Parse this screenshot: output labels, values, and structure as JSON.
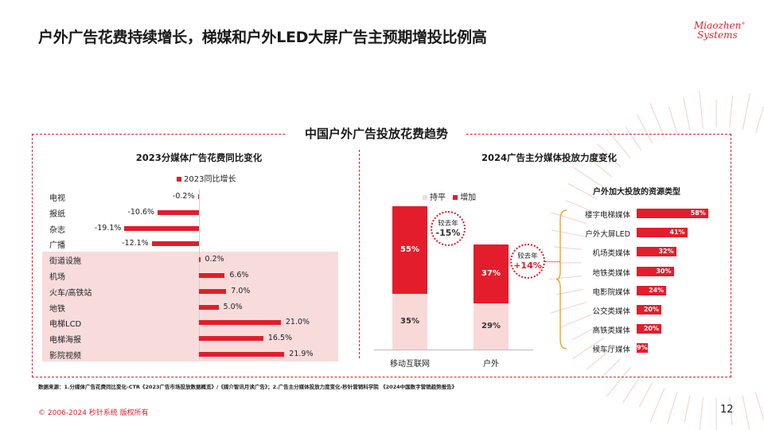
{
  "page": {
    "title": "户外广告花费持续增长，梯媒和户外LED大屏广告主预期增投比例高",
    "logo_line1": "Miaozhen",
    "logo_line2": "Systems",
    "logo_mark": "®",
    "panel_title": "中国户外广告投放花费趋势",
    "note": "数据来源：1.分媒体广告花费同比变化-CTR《2023广告市场投放数据概览》/《媒介智讯月读广告》；2.广告主分媒体投放力度变化-秒针营销科学院 《2024中国数字营销趋势报告》",
    "copyright": "© 2006-2024 秒针系统 版权所有",
    "page_number": "12"
  },
  "chart_data": [
    {
      "type": "bar",
      "orientation": "horizontal",
      "title": "2023分媒体广告花费同比变化",
      "legend": "2023同比增长",
      "categories": [
        "电视",
        "报纸",
        "杂志",
        "广播",
        "街道设施",
        "机场",
        "火车/高铁站",
        "地铁",
        "电梯LCD",
        "电梯海报",
        "影院视频"
      ],
      "values": [
        -0.2,
        -10.6,
        -19.1,
        -12.1,
        0.2,
        6.6,
        7.0,
        5.0,
        21.0,
        16.5,
        21.9
      ],
      "value_labels": [
        "-0.2%",
        "-10.6%",
        "-19.1%",
        "-12.1%",
        "0.2%",
        "6.6%",
        "7.0%",
        "5.0%",
        "21.0%",
        "16.5%",
        "21.9%"
      ],
      "highlighted_categories": [
        "街道设施",
        "机场",
        "火车/高铁站",
        "地铁",
        "电梯LCD",
        "电梯海报",
        "影院视频"
      ]
    },
    {
      "type": "bar",
      "stacked": true,
      "title": "2024广告主分媒体投放力度变化",
      "categories": [
        "移动互联网",
        "户外"
      ],
      "series": [
        {
          "name": "持平",
          "values": [
            35,
            29
          ],
          "labels": [
            "35%",
            "29%"
          ],
          "color": "#f9d8d8"
        },
        {
          "name": "增加",
          "values": [
            55,
            37
          ],
          "labels": [
            "55%",
            "37%"
          ],
          "color": "#e31d2b"
        }
      ],
      "annotations": [
        {
          "category": "移动互联网",
          "small": "较去年",
          "big": "-15%"
        },
        {
          "category": "户外",
          "small": "较去年",
          "big": "+14%"
        }
      ]
    },
    {
      "type": "bar",
      "orientation": "horizontal",
      "title": "户外加大投放的资源类型",
      "categories": [
        "楼宇电梯媒体",
        "户外大屏LED",
        "机场类媒体",
        "地铁类媒体",
        "电影院媒体",
        "公交类媒体",
        "高铁类媒体",
        "候车厅媒体"
      ],
      "values": [
        58,
        41,
        32,
        30,
        24,
        20,
        20,
        9
      ],
      "value_labels": [
        "58%",
        "41%",
        "32%",
        "30%",
        "24%",
        "20%",
        "20%",
        "9%"
      ]
    }
  ],
  "colors": {
    "accent": "#e31d2b",
    "light": "#f9d8d8",
    "highlight_bg": "#f8dcdc"
  }
}
